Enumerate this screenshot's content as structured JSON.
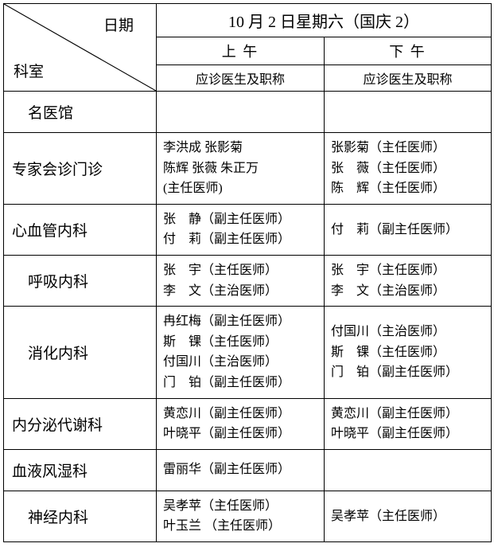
{
  "header": {
    "corner_top": "日期",
    "corner_bottom": "科室",
    "date": "10 月 2 日星期六（国庆 2）",
    "morning": "上 午",
    "afternoon": "下 午",
    "sub": "应诊医生及职称"
  },
  "rows": [
    {
      "dept": "名医馆",
      "indent": true,
      "morning": [],
      "afternoon": []
    },
    {
      "dept": "专家会诊门诊",
      "indent": false,
      "morning": [
        "李洪成 张影菊",
        "陈辉 张薇 朱正万",
        "(主任医师)"
      ],
      "afternoon": [
        "张影菊（主任医师）",
        "张　薇（主任医师）",
        "陈　辉（主任医师）"
      ]
    },
    {
      "dept": "心血管内科",
      "indent": false,
      "morning": [
        "张　静（副主任医师）",
        "付　莉（副主任医师）"
      ],
      "afternoon": [
        "付　莉（副主任医师）"
      ]
    },
    {
      "dept": "呼吸内科",
      "indent": true,
      "morning": [
        "张　宇（主任医师）",
        "李　文（主治医师）"
      ],
      "afternoon": [
        "张　宇（主任医师）",
        "李　文（主治医师）"
      ]
    },
    {
      "dept": "消化内科",
      "indent": true,
      "morning": [
        "冉红梅（副主任医师）",
        "斯　锞（主任医师）",
        "付国川（主治医师）",
        "门　铂（副主任医师）"
      ],
      "afternoon": [
        "付国川（主治医师）",
        "斯　锞（主任医师）",
        "门　铂（副主任医师）"
      ]
    },
    {
      "dept": "内分泌代谢科",
      "indent": false,
      "morning": [
        "黄恋川（副主任医师）",
        "叶晓平（副主任医师）"
      ],
      "afternoon": [
        "黄恋川（副主任医师）",
        "叶晓平（副主任医师）"
      ]
    },
    {
      "dept": "血液风湿科",
      "indent": false,
      "morning": [
        "雷丽华（副主任医师）"
      ],
      "afternoon": []
    },
    {
      "dept": "神经内科",
      "indent": true,
      "morning": [
        "吴孝苹（主任医师）",
        "叶玉兰 （主任医师）"
      ],
      "afternoon": [
        "吴孝苹（主任医师）"
      ]
    }
  ]
}
